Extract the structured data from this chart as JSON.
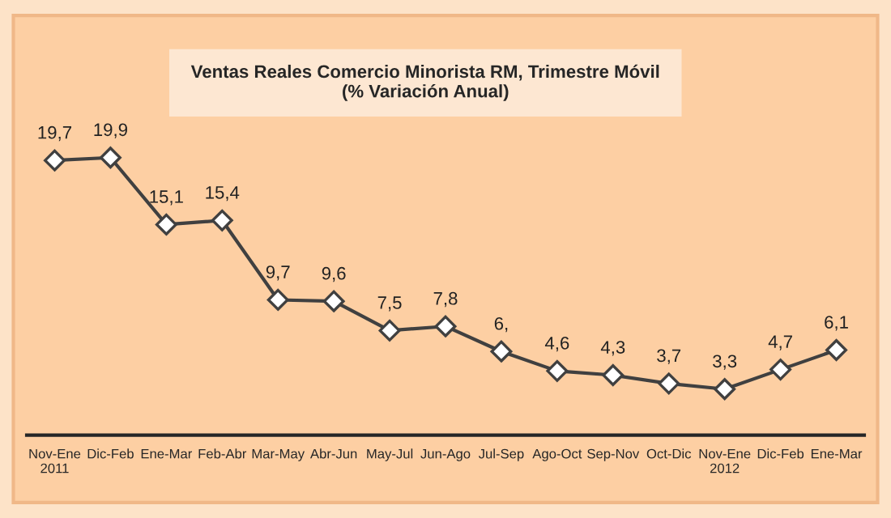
{
  "chart_data": {
    "type": "line",
    "title": "Ventas Reales Comercio Minorista RM, Trimestre Móvil\n(% Variación Anual)",
    "categories": [
      "Nov-Ene\n2011",
      "Dic-Feb",
      "Ene-Mar",
      "Feb-Abr",
      "Mar-May",
      "Abr-Jun",
      "May-Jul",
      "Jun-Ago",
      "Jul-Sep",
      "Ago-Oct",
      "Sep-Nov",
      "Oct-Dic",
      "Nov-Ene\n2012",
      "Dic-Feb",
      "Ene-Mar"
    ],
    "series": [
      {
        "color": "#404040",
        "values": [
          19.7,
          19.9,
          15.1,
          15.4,
          9.7,
          9.6,
          7.5,
          7.8,
          6.0,
          4.6,
          4.3,
          3.7,
          3.3,
          4.7,
          6.1
        ],
        "value_labels": [
          "19,7",
          "19,9",
          "15,1",
          "15,4",
          "9,7",
          "9,6",
          "7,5",
          "7,8",
          "6,",
          "4,6",
          "4,3",
          "3,7",
          "3,3",
          "4,7",
          "6,1"
        ]
      }
    ],
    "marker": "diamond",
    "line_style": "solid",
    "grid": false,
    "legend": false,
    "tick_labels": "x"
  }
}
